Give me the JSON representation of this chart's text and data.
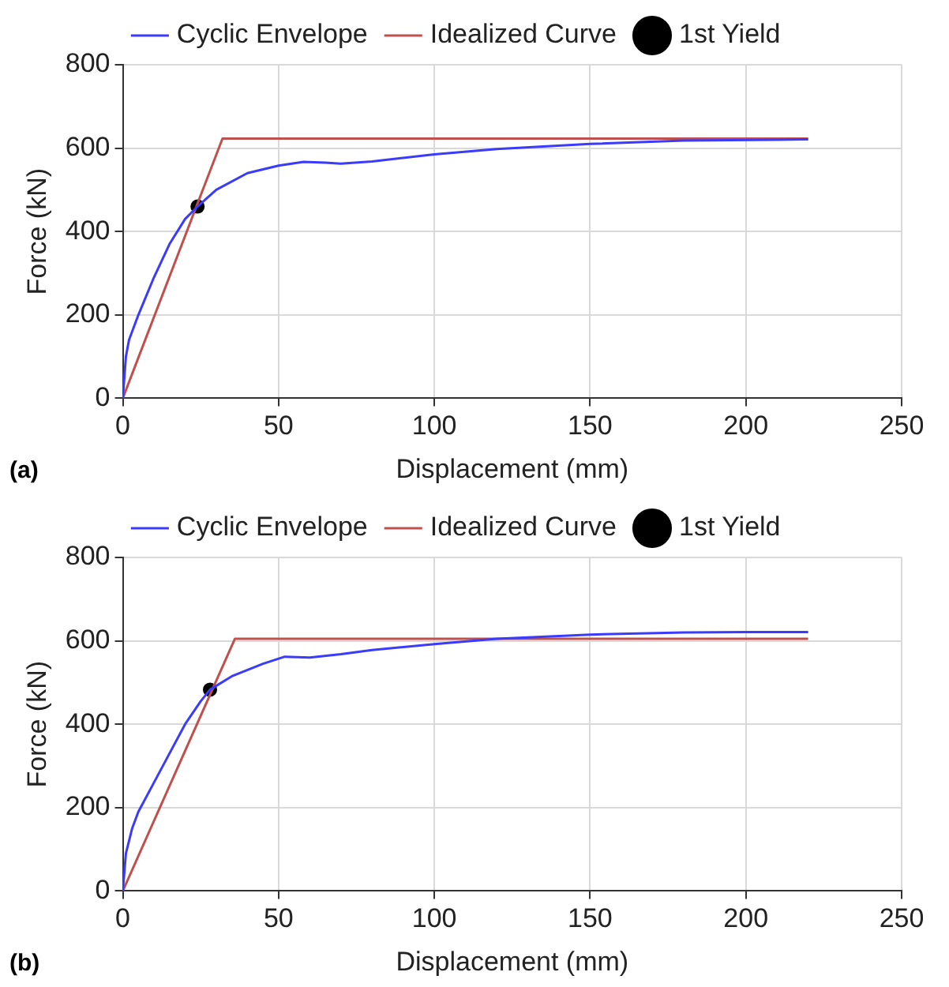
{
  "chart_data": [
    {
      "type": "line",
      "xlabel": "Displacement (mm)",
      "ylabel": "Force (kN)",
      "annotations": [
        "(a)"
      ],
      "legend": "top",
      "grid": true,
      "xlim": [
        0,
        250
      ],
      "xticks": [
        0,
        50,
        100,
        150,
        200,
        250
      ],
      "ylim": [
        0,
        800
      ],
      "yticks": [
        0,
        200,
        400,
        600,
        800
      ],
      "series": [
        {
          "name": "Cyclic Envelope",
          "color": "#3b3bff",
          "x": [
            0,
            1,
            2,
            5,
            10,
            15,
            20,
            24,
            30,
            40,
            50,
            58,
            65,
            70,
            80,
            100,
            120,
            150,
            180,
            210,
            220
          ],
          "values": [
            0,
            100,
            140,
            200,
            290,
            370,
            430,
            460,
            500,
            540,
            558,
            567,
            565,
            563,
            568,
            585,
            598,
            610,
            618,
            620,
            621
          ]
        },
        {
          "name": "Idealized Curve",
          "color": "#c0504d",
          "x": [
            0,
            32,
            220
          ],
          "values": [
            0,
            623,
            623
          ]
        },
        {
          "name": "1st Yield",
          "type": "scatter",
          "marker": "circle",
          "color": "#000000",
          "x": [
            24
          ],
          "values": [
            460
          ]
        }
      ]
    },
    {
      "type": "line",
      "xlabel": "Displacement (mm)",
      "ylabel": "Force (kN)",
      "annotations": [
        "(b)"
      ],
      "legend": "top",
      "grid": true,
      "xlim": [
        0,
        250
      ],
      "xticks": [
        0,
        50,
        100,
        150,
        200,
        250
      ],
      "ylim": [
        0,
        800
      ],
      "yticks": [
        0,
        200,
        400,
        600,
        800
      ],
      "series": [
        {
          "name": "Cyclic Envelope",
          "color": "#3b3bff",
          "x": [
            0,
            1,
            3,
            5,
            10,
            15,
            20,
            25,
            28,
            35,
            45,
            52,
            60,
            70,
            80,
            100,
            120,
            150,
            180,
            200,
            220
          ],
          "values": [
            0,
            90,
            150,
            190,
            260,
            330,
            400,
            455,
            483,
            515,
            545,
            562,
            560,
            568,
            578,
            592,
            605,
            615,
            620,
            621,
            621
          ]
        },
        {
          "name": "Idealized Curve",
          "color": "#c0504d",
          "x": [
            0,
            36,
            220
          ],
          "values": [
            0,
            605,
            605
          ]
        },
        {
          "name": "1st Yield",
          "type": "scatter",
          "marker": "circle",
          "color": "#000000",
          "x": [
            28
          ],
          "values": [
            483
          ]
        }
      ]
    }
  ]
}
